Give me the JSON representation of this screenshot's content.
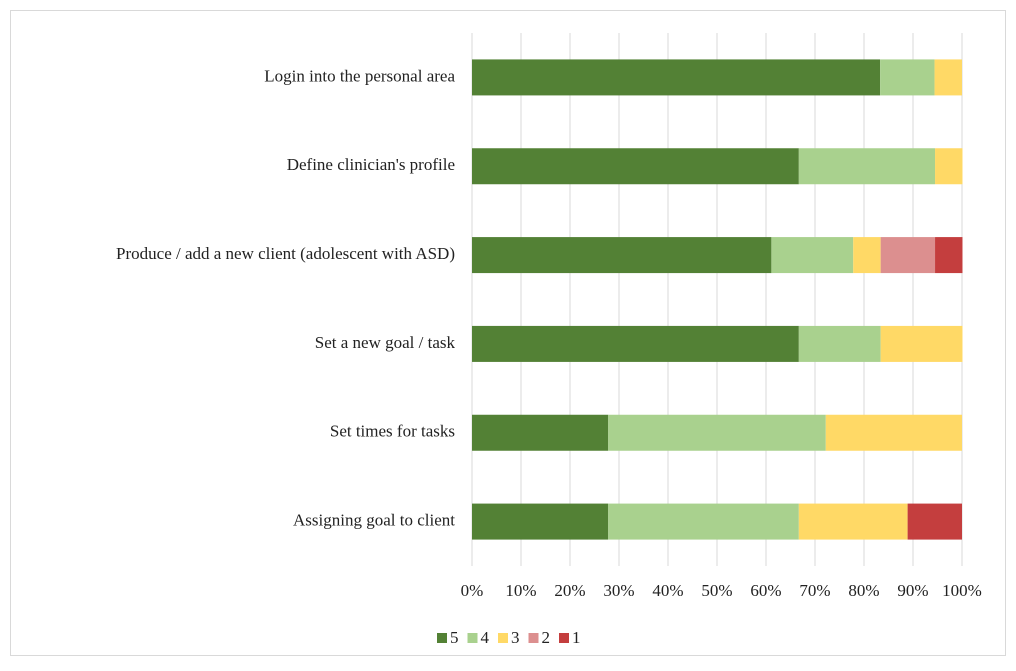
{
  "chart_data": {
    "type": "stacked_barh",
    "categories": [
      "Login into the personal area",
      "Define clinician's profile",
      "Produce / add a new client (adolescent with ASD)",
      "Set a new goal / task",
      "Set times for tasks",
      "Assigning goal to client"
    ],
    "series": [
      {
        "name": "5",
        "color": "#538135",
        "values": [
          83.3,
          66.7,
          61.1,
          66.7,
          27.8,
          27.8
        ]
      },
      {
        "name": "4",
        "color": "#a9d18e",
        "values": [
          11.1,
          27.8,
          16.7,
          16.7,
          44.4,
          38.9
        ]
      },
      {
        "name": "3",
        "color": "#ffd966",
        "values": [
          5.6,
          5.6,
          5.6,
          16.7,
          27.8,
          22.2
        ]
      },
      {
        "name": "2",
        "color": "#dc8f8f",
        "values": [
          0,
          0,
          11.1,
          0,
          0,
          0
        ]
      },
      {
        "name": "1",
        "color": "#c43e3e",
        "values": [
          0,
          0,
          5.6,
          0,
          0,
          11.1
        ]
      }
    ],
    "xlim": [
      0,
      100
    ],
    "xticks": [
      {
        "value": 0,
        "label": "0%"
      },
      {
        "value": 10,
        "label": "10%"
      },
      {
        "value": 20,
        "label": "20%"
      },
      {
        "value": 30,
        "label": "30%"
      },
      {
        "value": 40,
        "label": "40%"
      },
      {
        "value": 50,
        "label": "50%"
      },
      {
        "value": 60,
        "label": "60%"
      },
      {
        "value": 70,
        "label": "70%"
      },
      {
        "value": 80,
        "label": "80%"
      },
      {
        "value": 90,
        "label": "90%"
      },
      {
        "value": 100,
        "label": "100%"
      }
    ],
    "grid": true,
    "legend": "bottom"
  }
}
